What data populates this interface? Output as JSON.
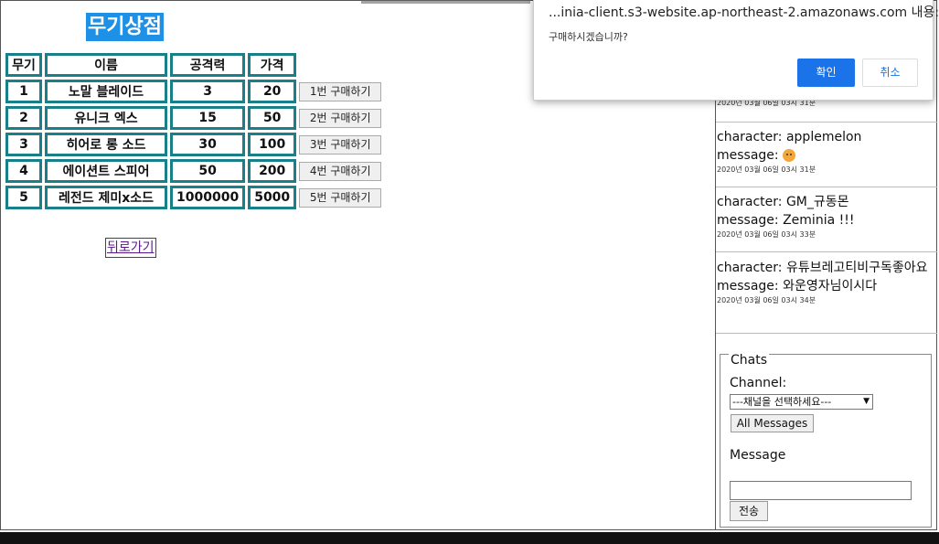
{
  "shop": {
    "title": "무기상점",
    "headers": {
      "id": "무기",
      "name": "이름",
      "attack": "공격력",
      "price": "가격"
    },
    "rows": [
      {
        "id": "1",
        "name": "노말 블레이드",
        "attack": "3",
        "price": "20",
        "buy": "1번 구매하기"
      },
      {
        "id": "2",
        "name": "유니크 엑스",
        "attack": "15",
        "price": "50",
        "buy": "2번 구매하기"
      },
      {
        "id": "3",
        "name": "히어로 롱 소드",
        "attack": "30",
        "price": "100",
        "buy": "3번 구매하기"
      },
      {
        "id": "4",
        "name": "에이션트 스피어",
        "attack": "50",
        "price": "200",
        "buy": "4번 구매하기"
      },
      {
        "id": "5",
        "name": "레전드 제미x소드",
        "attack": "1000000",
        "price": "5000",
        "buy": "5번 구매하기"
      }
    ],
    "back_link": "뒤로가기"
  },
  "chat": {
    "messages": [
      {
        "time": "2020년 03월 06일 03시 31분"
      },
      {
        "character": "character: applemelon",
        "message": "message: ",
        "time": "2020년 03월 06일 03시 31분"
      },
      {
        "character": "character: GM_규동몬",
        "message": "message: Zeminia !!!",
        "time": "2020년 03월 06일 03시 33분"
      },
      {
        "character": "character: 유튜브레고티비구독좋아요",
        "message": "message: 와운영자님이시다",
        "time": "2020년 03월 06일 03시 34분"
      }
    ],
    "form": {
      "legend": "Chats",
      "channel_label": "Channel:",
      "channel_selected": "---채널을 선택하세요---",
      "all_messages_button": "All Messages",
      "message_label": "Message",
      "message_value": "",
      "send_button": "전송"
    }
  },
  "dialog": {
    "origin": "...inia-client.s3-website.ap-northeast-2.amazonaws.com 내용:",
    "message": "구매하시겠습니까?",
    "ok_label": "확인",
    "cancel_label": "취소"
  },
  "colors": {
    "accent": "#1e90e6",
    "table_border": "#19808a",
    "dialog_button": "#1a73e8"
  }
}
